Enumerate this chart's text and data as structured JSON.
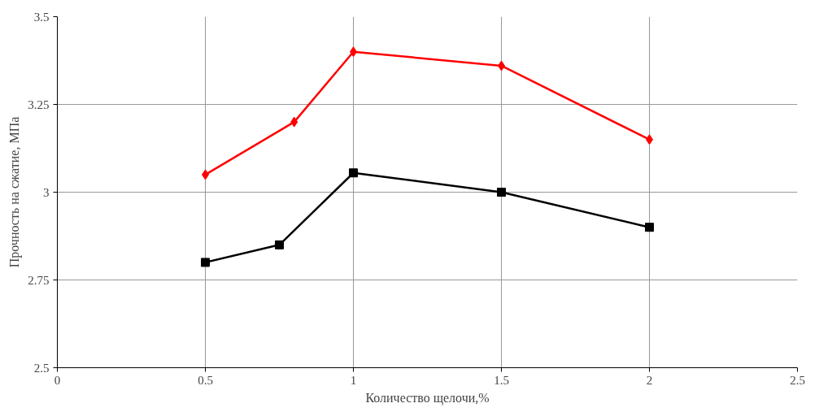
{
  "chart_data": {
    "type": "line",
    "xlabel": "Количество щелочи,%",
    "ylabel": "Прочность на сжатие, МПа",
    "xlim": [
      0,
      2.5
    ],
    "xticks": [
      0,
      0.5,
      1,
      1.5,
      2,
      2.5
    ],
    "ylim": [
      2.5,
      3.5
    ],
    "yticks": [
      2.5,
      2.75,
      3,
      3.25,
      3.5
    ],
    "grid": true,
    "line_style": "solid",
    "series": [
      {
        "color": "#ff0000",
        "marker": "diamond",
        "x": [
          0.5,
          0.8,
          1.0,
          1.5,
          2.0
        ],
        "values": [
          3.05,
          3.2,
          3.4,
          3.36,
          3.15
        ]
      },
      {
        "color": "#000000",
        "marker": "square",
        "x": [
          0.5,
          0.75,
          1.0,
          1.5,
          2.0
        ],
        "values": [
          2.8,
          2.85,
          3.055,
          3.0,
          2.9
        ]
      }
    ]
  }
}
